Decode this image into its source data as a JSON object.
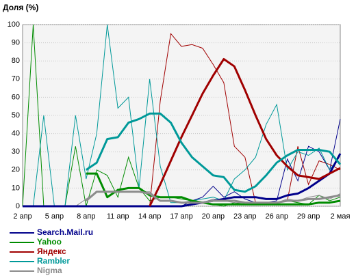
{
  "chart_data": {
    "type": "line",
    "y_label": "Доля (%)",
    "categories": [
      "2 апр",
      null,
      null,
      "5 апр",
      null,
      null,
      "8 апр",
      null,
      null,
      "11 апр",
      null,
      null,
      "14 апр",
      null,
      null,
      "17 апр",
      null,
      null,
      "20 апр",
      null,
      null,
      "23 апр",
      null,
      null,
      "26 апр",
      null,
      null,
      "29 апр",
      null,
      null,
      "2 мая"
    ],
    "ylim": [
      0,
      100
    ],
    "yticks": [
      0,
      10,
      20,
      30,
      40,
      50,
      60,
      70,
      80,
      90,
      100
    ],
    "grid": true,
    "series": [
      {
        "name": "Search.Mail.ru",
        "color": "#00008b",
        "values": [
          0,
          0,
          0,
          0,
          0,
          0,
          0,
          0,
          0,
          0,
          0,
          0,
          0,
          0,
          0,
          0,
          3,
          5,
          11,
          5,
          8,
          4,
          2,
          2,
          3,
          26,
          14,
          33,
          30,
          20,
          48
        ],
        "trend": [
          0,
          0,
          0,
          0,
          0,
          0,
          0,
          0,
          0,
          0,
          0,
          0,
          0,
          0,
          0,
          0,
          1,
          2,
          3,
          4,
          5,
          5,
          5,
          4,
          4,
          6,
          7,
          10,
          14,
          18,
          29
        ]
      },
      {
        "name": "Yahoo",
        "color": "#008c00",
        "values": [
          0,
          100,
          0,
          0,
          0,
          33,
          0,
          20,
          17,
          5,
          27,
          10,
          3,
          5,
          5,
          4,
          3,
          2,
          1,
          0,
          2,
          1,
          1,
          1,
          2,
          3,
          2,
          1,
          6,
          3,
          5
        ],
        "trend": [
          null,
          null,
          null,
          null,
          null,
          null,
          18,
          18,
          5,
          9,
          10,
          10,
          6,
          5,
          5,
          5,
          3,
          2,
          1,
          1,
          1,
          1,
          1,
          1,
          1,
          1,
          1,
          1,
          2,
          2,
          3
        ]
      },
      {
        "name": "Яндекс",
        "color": "#a00000",
        "values": [
          0,
          0,
          0,
          0,
          0,
          0,
          0,
          0,
          0,
          0,
          0,
          0,
          0,
          58,
          95,
          88,
          89,
          87,
          78,
          68,
          33,
          27,
          2,
          2,
          2,
          3,
          33,
          12,
          25,
          23,
          20
        ],
        "trend": [
          null,
          null,
          null,
          null,
          null,
          null,
          null,
          null,
          null,
          null,
          null,
          null,
          0,
          12,
          25,
          38,
          50,
          62,
          72,
          81,
          77,
          64,
          50,
          37,
          28,
          22,
          17,
          16,
          15,
          18,
          21
        ]
      },
      {
        "name": "Rambler",
        "color": "#009999",
        "values": [
          0,
          0,
          50,
          0,
          0,
          50,
          15,
          40,
          100,
          54,
          60,
          10,
          70,
          22,
          2,
          2,
          3,
          4,
          5,
          3,
          15,
          20,
          27,
          45,
          56,
          20,
          30,
          28,
          32,
          20,
          28
        ],
        "trend": [
          null,
          null,
          null,
          null,
          null,
          null,
          20,
          24,
          37,
          38,
          46,
          48,
          51,
          51,
          46,
          35,
          27,
          22,
          17,
          16,
          9,
          8,
          11,
          17,
          24,
          28,
          31,
          31,
          31,
          30,
          23
        ]
      },
      {
        "name": "Nigma",
        "color": "#8c8c8c",
        "values": [
          0,
          0,
          0,
          0,
          0,
          0,
          4,
          8,
          8,
          8,
          8,
          8,
          8,
          3,
          3,
          2,
          3,
          2,
          4,
          3,
          2,
          2,
          1,
          2,
          2,
          4,
          3,
          5,
          6,
          4,
          7
        ],
        "trend": [
          null,
          null,
          null,
          null,
          null,
          null,
          3,
          8,
          8,
          8,
          8,
          8,
          7,
          3,
          3,
          2,
          2,
          2,
          3,
          3,
          3,
          2,
          2,
          2,
          2,
          3,
          3,
          4,
          4,
          5,
          6
        ]
      }
    ]
  }
}
